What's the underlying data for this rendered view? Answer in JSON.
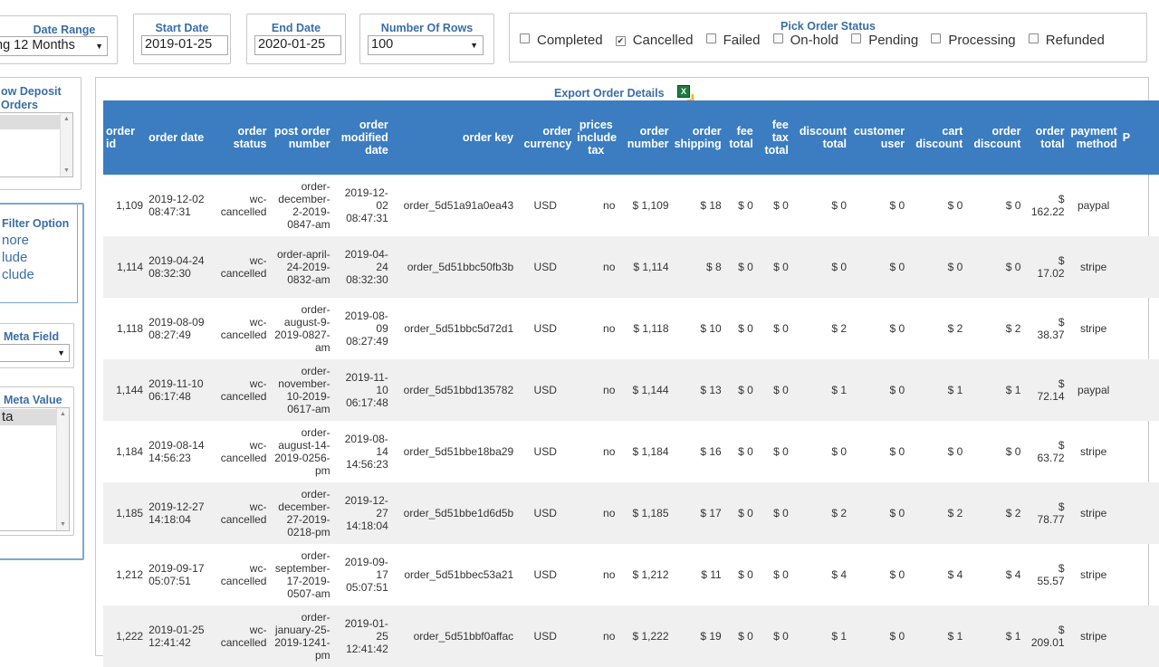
{
  "filters": {
    "date_range": {
      "label": "Date Range",
      "value": "ng 12 Months"
    },
    "start_date": {
      "label": "Start Date",
      "value": "2019-01-25"
    },
    "end_date": {
      "label": "End Date",
      "value": "2020-01-25"
    },
    "rows": {
      "label": "Number Of Rows",
      "value": "100"
    },
    "status": {
      "label": "Pick Order Status",
      "options": [
        {
          "label": "Completed",
          "checked": false
        },
        {
          "label": "Cancelled",
          "checked": true
        },
        {
          "label": "Failed",
          "checked": false
        },
        {
          "label": "On-hold",
          "checked": false
        },
        {
          "label": "Pending",
          "checked": false
        },
        {
          "label": "Processing",
          "checked": false
        },
        {
          "label": "Refunded",
          "checked": false
        }
      ]
    }
  },
  "left": {
    "deposit_title_1": "ow Deposit",
    "deposit_title_2": "Orders",
    "filter_option_title": "Filter Option",
    "filter_options": [
      "nore",
      "lude",
      "clude"
    ],
    "meta_field_title": "Meta Field",
    "meta_value_title": "Meta Value",
    "meta_value_selected": "ta"
  },
  "export": {
    "label": "Export Order Details",
    "icon_text": "X"
  },
  "table": {
    "headers": [
      "order id",
      "order date",
      "order status",
      "post order number",
      "order modified date",
      "order key",
      "order currency",
      "prices include tax",
      "order number",
      "order shipping",
      "fee total",
      "fee tax total",
      "discount total",
      "customer user",
      "cart discount",
      "order discount",
      "order total",
      "payment method",
      "P"
    ],
    "rows": [
      {
        "id": "1,109",
        "date": "2019-12-02 08:47:31",
        "status": "wc-cancelled",
        "post": "order-december-2-2019-0847-am",
        "modified": "2019-12-02 08:47:31",
        "key": "order_5d51a91a0ea43",
        "currency": "USD",
        "tax": "no",
        "number": "$ 1,109",
        "shipping": "$ 18",
        "fee": "$ 0",
        "feetax": "$ 0",
        "discount": "$ 0",
        "customer": "$ 0",
        "cart": "$ 0",
        "orderdisc": "$ 0",
        "total": "162.22",
        "payment": "paypal"
      },
      {
        "id": "1,114",
        "date": "2019-04-24 08:32:30",
        "status": "wc-cancelled",
        "post": "order-april-24-2019-0832-am",
        "modified": "2019-04-24 08:32:30",
        "key": "order_5d51bbc50fb3b",
        "currency": "USD",
        "tax": "no",
        "number": "$ 1,114",
        "shipping": "$ 8",
        "fee": "$ 0",
        "feetax": "$ 0",
        "discount": "$ 0",
        "customer": "$ 0",
        "cart": "$ 0",
        "orderdisc": "$ 0",
        "total": "17.02",
        "payment": "stripe"
      },
      {
        "id": "1,118",
        "date": "2019-08-09 08:27:49",
        "status": "wc-cancelled",
        "post": "order-august-9-2019-0827-am",
        "modified": "2019-08-09 08:27:49",
        "key": "order_5d51bbc5d72d1",
        "currency": "USD",
        "tax": "no",
        "number": "$ 1,118",
        "shipping": "$ 10",
        "fee": "$ 0",
        "feetax": "$ 0",
        "discount": "$ 2",
        "customer": "$ 0",
        "cart": "$ 2",
        "orderdisc": "$ 2",
        "total": "38.37",
        "payment": "stripe"
      },
      {
        "id": "1,144",
        "date": "2019-11-10 06:17:48",
        "status": "wc-cancelled",
        "post": "order-november-10-2019-0617-am",
        "modified": "2019-11-10 06:17:48",
        "key": "order_5d51bbd135782",
        "currency": "USD",
        "tax": "no",
        "number": "$ 1,144",
        "shipping": "$ 13",
        "fee": "$ 0",
        "feetax": "$ 0",
        "discount": "$ 1",
        "customer": "$ 0",
        "cart": "$ 1",
        "orderdisc": "$ 1",
        "total": "72.14",
        "payment": "paypal"
      },
      {
        "id": "1,184",
        "date": "2019-08-14 14:56:23",
        "status": "wc-cancelled",
        "post": "order-august-14-2019-0256-pm",
        "modified": "2019-08-14 14:56:23",
        "key": "order_5d51bbe18ba29",
        "currency": "USD",
        "tax": "no",
        "number": "$ 1,184",
        "shipping": "$ 16",
        "fee": "$ 0",
        "feetax": "$ 0",
        "discount": "$ 0",
        "customer": "$ 0",
        "cart": "$ 0",
        "orderdisc": "$ 0",
        "total": "63.72",
        "payment": "stripe"
      },
      {
        "id": "1,185",
        "date": "2019-12-27 14:18:04",
        "status": "wc-cancelled",
        "post": "order-december-27-2019-0218-pm",
        "modified": "2019-12-27 14:18:04",
        "key": "order_5d51bbe1d6d5b",
        "currency": "USD",
        "tax": "no",
        "number": "$ 1,185",
        "shipping": "$ 17",
        "fee": "$ 0",
        "feetax": "$ 0",
        "discount": "$ 2",
        "customer": "$ 0",
        "cart": "$ 2",
        "orderdisc": "$ 2",
        "total": "78.77",
        "payment": "stripe"
      },
      {
        "id": "1,212",
        "date": "2019-09-17 05:07:51",
        "status": "wc-cancelled",
        "post": "order-september-17-2019-0507-am",
        "modified": "2019-09-17 05:07:51",
        "key": "order_5d51bbec53a21",
        "currency": "USD",
        "tax": "no",
        "number": "$ 1,212",
        "shipping": "$ 11",
        "fee": "$ 0",
        "feetax": "$ 0",
        "discount": "$ 4",
        "customer": "$ 0",
        "cart": "$ 4",
        "orderdisc": "$ 4",
        "total": "55.57",
        "payment": "stripe"
      },
      {
        "id": "1,222",
        "date": "2019-01-25 12:41:42",
        "status": "wc-cancelled",
        "post": "order-january-25-2019-1241-pm",
        "modified": "2019-01-25 12:41:42",
        "key": "order_5d51bbf0affac",
        "currency": "USD",
        "tax": "no",
        "number": "$ 1,222",
        "shipping": "$ 19",
        "fee": "$ 0",
        "feetax": "$ 0",
        "discount": "$ 1",
        "customer": "$ 0",
        "cart": "$ 1",
        "orderdisc": "$ 1",
        "total": "209.01",
        "payment": "stripe"
      }
    ]
  }
}
